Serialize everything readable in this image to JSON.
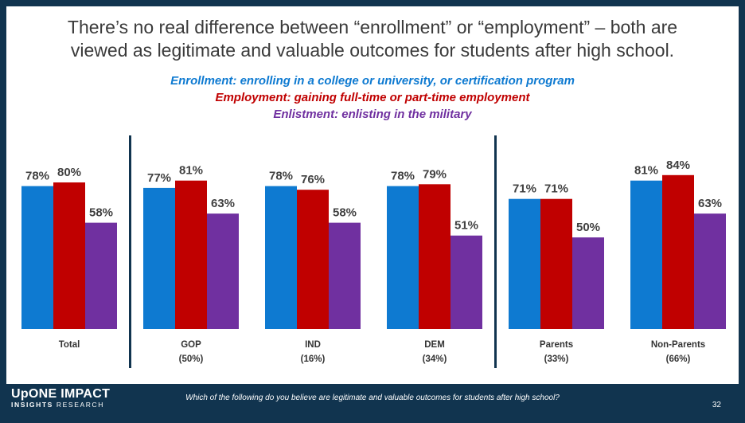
{
  "title": "There’s no real difference between “enrollment” or “employment” – both are\nviewed as legitimate and valuable outcomes for students after high school.",
  "definitions": {
    "enrollment": "Enrollment: enrolling in a college or university, or certification program",
    "employment": "Employment: gaining full-time or part-time employment",
    "enlistment": "Enlistment: enlisting in the military"
  },
  "colors": {
    "enrollment": "#0e7ad1",
    "employment": "#c00000",
    "enlistment": "#7030a0",
    "label_text": "#404040",
    "divider": "#11344f"
  },
  "chart_data": {
    "type": "bar",
    "categories": [
      "Total",
      "GOP",
      "IND",
      "DEM",
      "Parents",
      "Non-Parents"
    ],
    "category_sublabels": [
      "",
      "(50%)",
      "(16%)",
      "(34%)",
      "(33%)",
      "(66%)"
    ],
    "series": [
      {
        "name": "Enrollment",
        "values": [
          78,
          77,
          78,
          78,
          71,
          81
        ]
      },
      {
        "name": "Employment",
        "values": [
          80,
          81,
          76,
          79,
          71,
          84
        ]
      },
      {
        "name": "Enlistment",
        "values": [
          58,
          63,
          58,
          51,
          50,
          63
        ]
      }
    ],
    "value_suffix": "%",
    "ylim": [
      0,
      100
    ],
    "dividers_after": [
      "Total",
      "DEM"
    ],
    "legend": "none",
    "grid": false
  },
  "footer": {
    "question": "Which of the following do you believe are legitimate and valuable outcomes for students after high school?",
    "page_number": "32",
    "logo_main": "UpONE IMPACT",
    "logo_sub_bold": "INSIGHTS",
    "logo_sub_rest": " RESEARCH"
  }
}
